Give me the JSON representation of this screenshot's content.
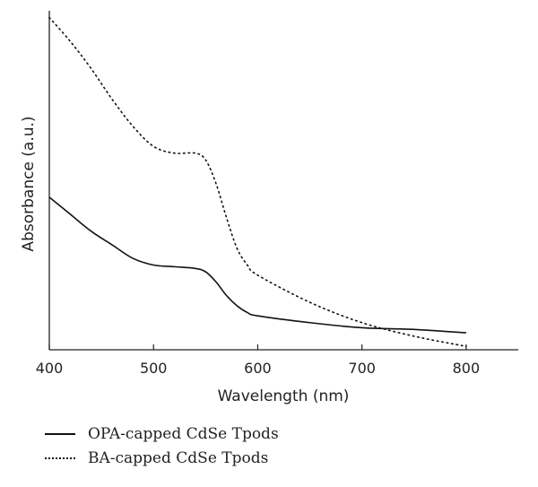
{
  "chart_data": {
    "type": "line",
    "title": "",
    "xlabel": "Wavelength (nm)",
    "ylabel": "Absorbance (a.u.)",
    "xlim": [
      400,
      850
    ],
    "ylim": [
      0,
      1
    ],
    "xticks": [
      400,
      500,
      600,
      700,
      800
    ],
    "yticks_shown": false,
    "grid": false,
    "legend_position": "bottom-left-below-axes",
    "series": [
      {
        "name": "OPA-capped CdSe Tpods",
        "style": "solid",
        "color": "#111111",
        "x": [
          400,
          420,
          440,
          460,
          480,
          500,
          520,
          540,
          550,
          560,
          570,
          580,
          590,
          600,
          650,
          700,
          750,
          800
        ],
        "y": [
          0.45,
          0.4,
          0.35,
          0.31,
          0.27,
          0.25,
          0.245,
          0.24,
          0.23,
          0.2,
          0.16,
          0.13,
          0.11,
          0.1,
          0.08,
          0.065,
          0.06,
          0.05
        ]
      },
      {
        "name": "BA-capped CdSe Tpods",
        "style": "dotted",
        "color": "#111111",
        "x": [
          400,
          420,
          440,
          460,
          480,
          500,
          520,
          540,
          550,
          560,
          570,
          580,
          590,
          600,
          650,
          700,
          750,
          800
        ],
        "y": [
          0.98,
          0.91,
          0.83,
          0.74,
          0.66,
          0.6,
          0.58,
          0.58,
          0.56,
          0.49,
          0.39,
          0.3,
          0.25,
          0.22,
          0.14,
          0.08,
          0.04,
          0.01
        ]
      }
    ]
  }
}
